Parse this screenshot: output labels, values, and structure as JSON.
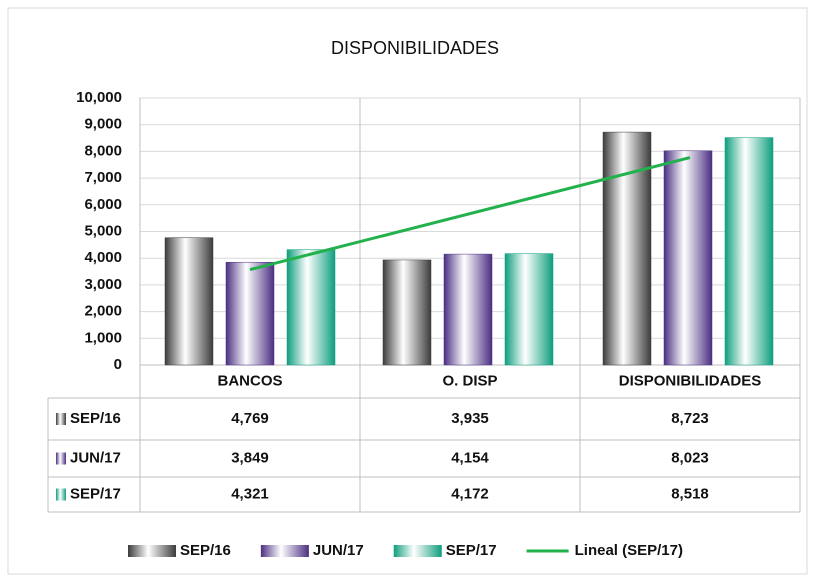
{
  "chart_data": {
    "type": "bar",
    "title": "DISPONIBILIDADES",
    "categories": [
      "BANCOS",
      "O. DISP",
      "DISPONIBILIDADES"
    ],
    "series": [
      {
        "name": "SEP/16",
        "color": "#3c3c3c",
        "values": [
          4769,
          3935,
          8723
        ],
        "value_labels": [
          "4,769",
          "3,935",
          "8,723"
        ]
      },
      {
        "name": "JUN/17",
        "color": "#4b2f82",
        "values": [
          3849,
          4154,
          8023
        ],
        "value_labels": [
          "3,849",
          "4,154",
          "8,023"
        ]
      },
      {
        "name": "SEP/17",
        "color": "#0f9e7e",
        "values": [
          4321,
          4172,
          8518
        ],
        "value_labels": [
          "4,321",
          "4,172",
          "8,518"
        ]
      }
    ],
    "trendline": {
      "name": "Lineal (SEP/17)",
      "series_index": 2,
      "color": "#22b14c"
    },
    "ylim": [
      0,
      10000
    ],
    "yticks": [
      0,
      {
        "value": 1000,
        "label": "1,000"
      },
      {
        "value": 2000,
        "label": "2,000"
      },
      {
        "value": 3000,
        "label": "3,000"
      },
      {
        "value": 4000,
        "label": "4,000"
      },
      {
        "value": 5000,
        "label": "5,000"
      },
      {
        "value": 6000,
        "label": "6,000"
      },
      {
        "value": 7000,
        "label": "7,000"
      },
      {
        "value": 8000,
        "label": "8,000"
      },
      {
        "value": 9000,
        "label": "9,000"
      },
      {
        "value": 10000,
        "label": "10,000"
      }
    ],
    "grid": true,
    "legend": "bottom",
    "data_table": true
  }
}
